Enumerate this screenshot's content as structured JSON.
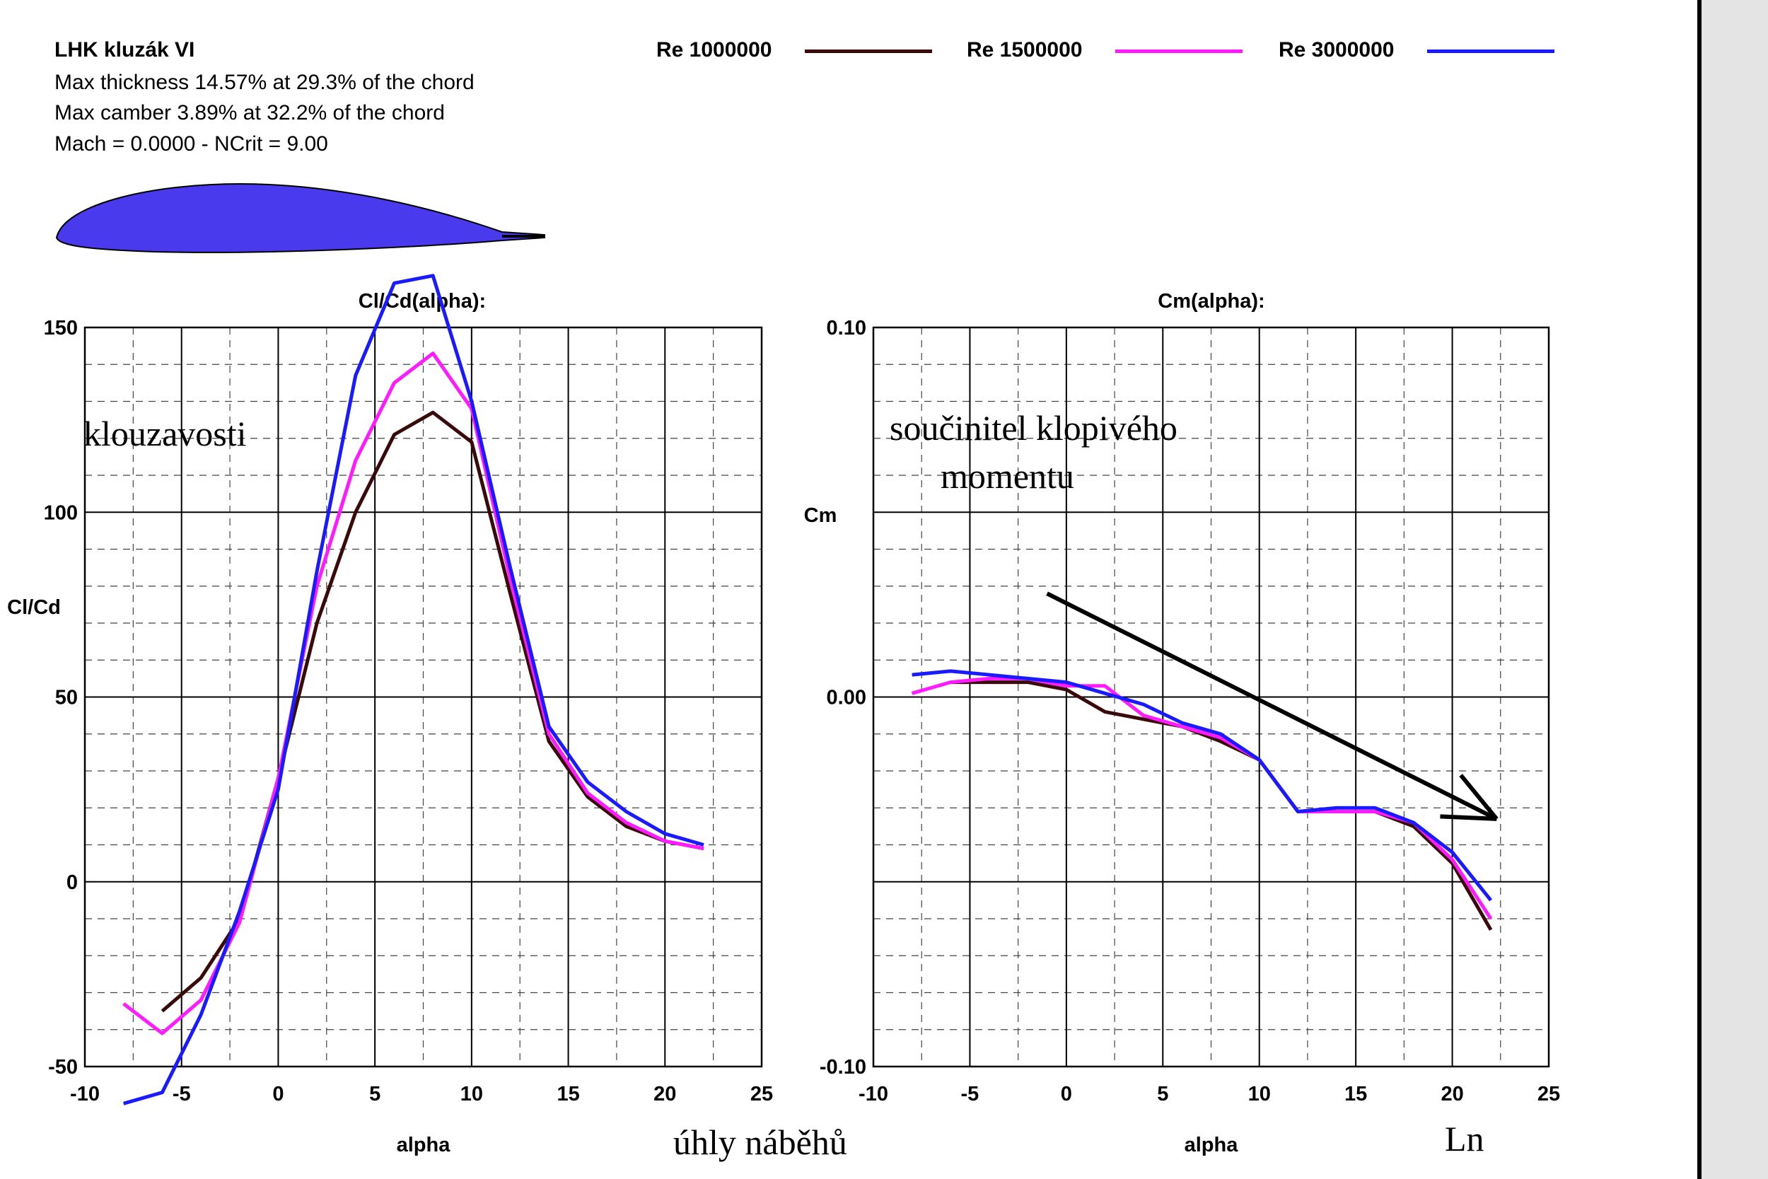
{
  "header": {
    "airfoil_name": "LHK kluzák VI",
    "thickness_line": "Max thickness 14.57% at 29.3% of the chord",
    "camber_line": "Max camber 3.89% at 32.2% of the chord",
    "conditions_line": "Mach = 0.0000 - NCrit = 9.00"
  },
  "colors": {
    "re_1000000": "#3a0a0a",
    "re_1500000": "#ff1aff",
    "re_3000000": "#1a1aff",
    "airfoil_fill": "#4a3aee",
    "annotation_arrow": "#000000"
  },
  "legend": [
    {
      "label": "Re 1000000",
      "color": "#3a0a0a"
    },
    {
      "label": "Re 1500000",
      "color": "#ff1aff"
    },
    {
      "label": "Re 3000000",
      "color": "#1a1aff"
    }
  ],
  "annotations": {
    "left_chart": "klouzavosti",
    "right_chart_line1": "součinitel klopivého",
    "right_chart_line2": "momentu",
    "bottom_center": "úhly  náběhů",
    "bottom_right": "Ln"
  },
  "chart_data": [
    {
      "type": "line",
      "title": "Cl/Cd(alpha):",
      "xlabel": "alpha",
      "ylabel": "Cl/Cd",
      "xlim": [
        -10,
        25
      ],
      "ylim": [
        -50,
        150
      ],
      "x_ticks": [
        -10,
        -5,
        0,
        5,
        10,
        15,
        20,
        25
      ],
      "y_ticks": [
        -50,
        0,
        50,
        100,
        150
      ],
      "grid": true,
      "series": [
        {
          "name": "Re 1000000",
          "color": "#3a0a0a",
          "x": [
            -6,
            -4,
            -2,
            0,
            2,
            4,
            6,
            8,
            10,
            12,
            14,
            16,
            18,
            20,
            22
          ],
          "y": [
            -35,
            -26,
            -10,
            28,
            70,
            100,
            121,
            127,
            119,
            78,
            38,
            23,
            15,
            11,
            9
          ]
        },
        {
          "name": "Re 1500000",
          "color": "#ff1aff",
          "x": [
            -8,
            -6,
            -4,
            -2,
            0,
            2,
            4,
            6,
            8,
            10,
            12,
            14,
            16,
            18,
            20,
            22
          ],
          "y": [
            -33,
            -41,
            -32,
            -11,
            28,
            80,
            114,
            135,
            143,
            128,
            82,
            40,
            24,
            16,
            11,
            9
          ]
        },
        {
          "name": "Re 3000000",
          "color": "#1a1aff",
          "x": [
            -8,
            -6,
            -4,
            -2,
            0,
            2,
            4,
            6,
            8,
            10,
            12,
            14,
            16,
            18,
            20,
            22
          ],
          "y": [
            -60,
            -57,
            -36,
            -8,
            25,
            84,
            137,
            162,
            164,
            130,
            85,
            42,
            27,
            19,
            13,
            10
          ]
        }
      ]
    },
    {
      "type": "line",
      "title": "Cm(alpha):",
      "xlabel": "alpha",
      "ylabel": "Cm",
      "xlim": [
        -10,
        25
      ],
      "ylim": [
        -0.1,
        0.1
      ],
      "x_ticks": [
        -10,
        -5,
        0,
        5,
        10,
        15,
        20,
        25
      ],
      "y_ticks": [
        -0.1,
        0.0,
        0.1
      ],
      "y_tick_labels": [
        "-0.10",
        "0.00",
        "0.10"
      ],
      "grid": true,
      "series": [
        {
          "name": "Re 1000000",
          "color": "#3a0a0a",
          "x": [
            -6,
            -4,
            -2,
            0,
            2,
            4,
            6,
            8,
            10,
            12,
            14,
            16,
            18,
            20,
            22
          ],
          "y": [
            0.004,
            0.004,
            0.004,
            0.002,
            -0.004,
            -0.006,
            -0.008,
            -0.012,
            -0.017,
            -0.031,
            -0.031,
            -0.031,
            -0.035,
            -0.045,
            -0.063
          ]
        },
        {
          "name": "Re 1500000",
          "color": "#ff1aff",
          "x": [
            -8,
            -6,
            -4,
            -2,
            0,
            2,
            4,
            6,
            8,
            10,
            12,
            14,
            16,
            18,
            20,
            22
          ],
          "y": [
            0.001,
            0.004,
            0.005,
            0.005,
            0.003,
            0.003,
            -0.005,
            -0.008,
            -0.011,
            -0.017,
            -0.031,
            -0.031,
            -0.031,
            -0.034,
            -0.044,
            -0.06
          ]
        },
        {
          "name": "Re 3000000",
          "color": "#1a1aff",
          "x": [
            -8,
            -6,
            -4,
            -2,
            0,
            2,
            4,
            6,
            8,
            10,
            12,
            14,
            16,
            18,
            20,
            22
          ],
          "y": [
            0.006,
            0.007,
            0.006,
            0.005,
            0.004,
            0.001,
            -0.002,
            -0.007,
            -0.01,
            -0.017,
            -0.031,
            -0.03,
            -0.03,
            -0.034,
            -0.042,
            -0.055
          ]
        }
      ],
      "annotation_arrow": {
        "from": [
          -1,
          0.028
        ],
        "to": [
          22.3,
          -0.033
        ],
        "color": "#000000"
      }
    }
  ]
}
